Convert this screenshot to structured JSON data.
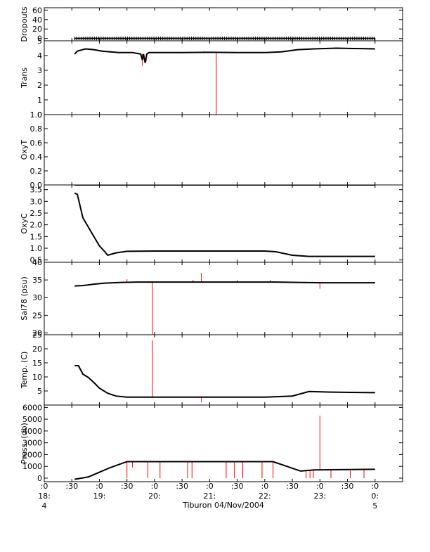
{
  "chart_data": {
    "type": "line",
    "xlabel": "Tiburon 04/Nov/2004",
    "x_domain_hours": [
      18.0,
      24.5
    ],
    "x_ticks": [
      {
        "h": 18.0,
        "l1": ":0",
        "l2": "18:",
        "l3": "4"
      },
      {
        "h": 18.5,
        "l1": ":30",
        "l2": "",
        "l3": ""
      },
      {
        "h": 19.0,
        "l1": ":0",
        "l2": "19:",
        "l3": ""
      },
      {
        "h": 19.5,
        "l1": ":30",
        "l2": "",
        "l3": ""
      },
      {
        "h": 20.0,
        "l1": ":0",
        "l2": "20:",
        "l3": ""
      },
      {
        "h": 20.5,
        "l1": ":30",
        "l2": "",
        "l3": ""
      },
      {
        "h": 21.0,
        "l1": ":0",
        "l2": "21:",
        "l3": ""
      },
      {
        "h": 21.5,
        "l1": ":30",
        "l2": "",
        "l3": ""
      },
      {
        "h": 22.0,
        "l1": ":0",
        "l2": "22:",
        "l3": ""
      },
      {
        "h": 22.5,
        "l1": ":30",
        "l2": "",
        "l3": ""
      },
      {
        "h": 23.0,
        "l1": ":0",
        "l2": "23:",
        "l3": ""
      },
      {
        "h": 23.5,
        "l1": ":30",
        "l2": "",
        "l3": ""
      },
      {
        "h": 24.0,
        "l1": ":0",
        "l2": "0:",
        "l3": "5"
      }
    ],
    "colors": {
      "line": "#000000",
      "spike": "#ff0000"
    },
    "panels": [
      {
        "name": "dropouts",
        "ylabel": "Dropouts",
        "ylim": [
          -5,
          65
        ],
        "yticks": [
          {
            "v": 60,
            "t": "60"
          },
          {
            "v": 40,
            "t": "40"
          },
          {
            "v": 20,
            "t": "20"
          },
          {
            "v": 0,
            "t": "0"
          }
        ],
        "marker": "plus",
        "line": [
          [
            18.55,
            0
          ],
          [
            24.0,
            0
          ]
        ],
        "spikes": []
      },
      {
        "name": "trans",
        "ylabel": "Trans",
        "ylim": [
          0,
          5
        ],
        "yticks": [
          {
            "v": 5,
            "t": "5"
          },
          {
            "v": 4,
            "t": "4"
          },
          {
            "v": 3,
            "t": "3"
          },
          {
            "v": 2,
            "t": "2"
          },
          {
            "v": 1,
            "t": "1"
          },
          {
            "v": 0,
            "t": "0"
          }
        ],
        "line": [
          [
            18.55,
            4.1
          ],
          [
            18.6,
            4.3
          ],
          [
            18.75,
            4.45
          ],
          [
            18.9,
            4.4
          ],
          [
            19.05,
            4.3
          ],
          [
            19.2,
            4.25
          ],
          [
            19.35,
            4.2
          ],
          [
            19.6,
            4.2
          ],
          [
            19.75,
            4.1
          ],
          [
            19.78,
            3.7
          ],
          [
            19.8,
            4.1
          ],
          [
            19.83,
            3.5
          ],
          [
            19.86,
            4.1
          ],
          [
            19.9,
            4.2
          ],
          [
            20.5,
            4.2
          ],
          [
            21.0,
            4.22
          ],
          [
            21.5,
            4.2
          ],
          [
            22.0,
            4.2
          ],
          [
            22.3,
            4.25
          ],
          [
            22.6,
            4.4
          ],
          [
            22.9,
            4.45
          ],
          [
            23.3,
            4.5
          ],
          [
            24.0,
            4.45
          ]
        ],
        "spikes": [
          [
            19.78,
            4.1,
            3.3
          ],
          [
            19.85,
            4.1,
            3.6
          ],
          [
            21.12,
            4.2,
            0.0
          ],
          [
            20.9,
            4.2,
            4.3
          ]
        ]
      },
      {
        "name": "oxyt",
        "ylabel": "OxyT",
        "ylim": [
          0,
          1
        ],
        "yticks": [
          {
            "v": 1.0,
            "t": "1.0"
          },
          {
            "v": 0.8,
            "t": "0.8"
          },
          {
            "v": 0.6,
            "t": "0.6"
          },
          {
            "v": 0.4,
            "t": "0.4"
          },
          {
            "v": 0.2,
            "t": "0.2"
          },
          {
            "v": 0.0,
            "t": "0.0"
          }
        ],
        "line": [],
        "spikes": []
      },
      {
        "name": "oxyc",
        "ylabel": "OxyC",
        "ylim": [
          0.4,
          3.7
        ],
        "yticks": [
          {
            "v": 3.5,
            "t": "3.5"
          },
          {
            "v": 3.0,
            "t": "3.0"
          },
          {
            "v": 2.5,
            "t": "2.5"
          },
          {
            "v": 2.0,
            "t": "2.0"
          },
          {
            "v": 1.5,
            "t": "1.5"
          },
          {
            "v": 1.0,
            "t": "1.0"
          },
          {
            "v": 0.5,
            "t": "0.5"
          }
        ],
        "line": [
          [
            18.55,
            3.35
          ],
          [
            18.6,
            3.3
          ],
          [
            18.65,
            2.8
          ],
          [
            18.7,
            2.3
          ],
          [
            18.8,
            1.9
          ],
          [
            18.9,
            1.5
          ],
          [
            19.0,
            1.1
          ],
          [
            19.1,
            0.85
          ],
          [
            19.15,
            0.7
          ],
          [
            19.3,
            0.8
          ],
          [
            19.5,
            0.87
          ],
          [
            20.0,
            0.88
          ],
          [
            21.0,
            0.88
          ],
          [
            22.0,
            0.88
          ],
          [
            22.2,
            0.85
          ],
          [
            22.5,
            0.7
          ],
          [
            22.8,
            0.65
          ],
          [
            24.0,
            0.65
          ]
        ],
        "top_line": [
          [
            18.55,
            3.7
          ],
          [
            24.0,
            3.7
          ]
        ],
        "spikes": []
      },
      {
        "name": "sal",
        "ylabel": "Sal78 (psu)",
        "ylim": [
          19.5,
          40
        ],
        "yticks": [
          {
            "v": 40,
            "t": "40"
          },
          {
            "v": 35,
            "t": "35"
          },
          {
            "v": 30,
            "t": "30"
          },
          {
            "v": 25,
            "t": "25"
          },
          {
            "v": 20,
            "t": "20"
          }
        ],
        "line": [
          [
            18.55,
            33.3
          ],
          [
            18.7,
            33.4
          ],
          [
            18.9,
            33.8
          ],
          [
            19.1,
            34.1
          ],
          [
            19.4,
            34.3
          ],
          [
            19.7,
            34.4
          ],
          [
            20.5,
            34.4
          ],
          [
            21.5,
            34.4
          ],
          [
            22.2,
            34.4
          ],
          [
            22.6,
            34.3
          ],
          [
            23.0,
            34.2
          ],
          [
            24.0,
            34.2
          ]
        ],
        "spikes": [
          [
            19.96,
            34.4,
            19.5
          ],
          [
            20.85,
            34.4,
            37.0
          ],
          [
            23.0,
            34.2,
            32.5
          ],
          [
            19.5,
            34.4,
            35.2
          ],
          [
            20.7,
            34.4,
            35.0
          ],
          [
            21.5,
            34.4,
            35.0
          ],
          [
            22.1,
            34.4,
            35.0
          ]
        ]
      },
      {
        "name": "temp",
        "ylabel": "Temp. (C)",
        "ylim": [
          0,
          25
        ],
        "yticks": [
          {
            "v": 25,
            "t": "25"
          },
          {
            "v": 20,
            "t": "20"
          },
          {
            "v": 15,
            "t": "15"
          },
          {
            "v": 10,
            "t": "10"
          },
          {
            "v": 5,
            "t": "5"
          }
        ],
        "line": [
          [
            18.55,
            14.0
          ],
          [
            18.62,
            14.0
          ],
          [
            18.7,
            11.0
          ],
          [
            18.8,
            9.8
          ],
          [
            18.9,
            8.0
          ],
          [
            19.0,
            6.0
          ],
          [
            19.15,
            4.2
          ],
          [
            19.3,
            3.2
          ],
          [
            19.5,
            2.8
          ],
          [
            20.0,
            2.8
          ],
          [
            21.0,
            2.8
          ],
          [
            22.0,
            2.8
          ],
          [
            22.5,
            3.2
          ],
          [
            22.8,
            4.8
          ],
          [
            23.2,
            4.6
          ],
          [
            24.0,
            4.4
          ]
        ],
        "spikes": [
          [
            19.96,
            2.8,
            23.0
          ],
          [
            20.85,
            2.8,
            1.0
          ]
        ]
      },
      {
        "name": "press",
        "ylabel": "Press. (db)",
        "ylim": [
          -300,
          6200
        ],
        "yticks": [
          {
            "v": 6000,
            "t": "6000"
          },
          {
            "v": 5000,
            "t": "5000"
          },
          {
            "v": 4000,
            "t": "4000"
          },
          {
            "v": 3000,
            "t": "3000"
          },
          {
            "v": 2000,
            "t": "2000"
          },
          {
            "v": 1000,
            "t": "1000"
          },
          {
            "v": 0,
            "t": "0"
          }
        ],
        "line": [
          [
            18.55,
            -100
          ],
          [
            18.8,
            100
          ],
          [
            19.0,
            500
          ],
          [
            19.2,
            900
          ],
          [
            19.5,
            1400
          ],
          [
            20.0,
            1400
          ],
          [
            21.0,
            1400
          ],
          [
            22.0,
            1400
          ],
          [
            22.15,
            1400
          ],
          [
            22.4,
            1000
          ],
          [
            22.65,
            600
          ],
          [
            22.9,
            700
          ],
          [
            24.0,
            750
          ]
        ],
        "spikes": [
          [
            19.5,
            1400,
            0
          ],
          [
            19.88,
            1400,
            0
          ],
          [
            20.1,
            1400,
            0
          ],
          [
            20.6,
            1400,
            0
          ],
          [
            20.68,
            1400,
            0
          ],
          [
            21.3,
            1400,
            0
          ],
          [
            21.45,
            1400,
            0
          ],
          [
            21.6,
            1400,
            0
          ],
          [
            21.95,
            1400,
            0
          ],
          [
            22.15,
            1400,
            0
          ],
          [
            22.75,
            650,
            0
          ],
          [
            22.82,
            650,
            0
          ],
          [
            22.88,
            700,
            0
          ],
          [
            23.0,
            700,
            5300
          ],
          [
            23.2,
            700,
            0
          ],
          [
            23.55,
            700,
            0
          ],
          [
            23.8,
            700,
            0
          ],
          [
            19.6,
            1400,
            900
          ]
        ]
      }
    ]
  }
}
